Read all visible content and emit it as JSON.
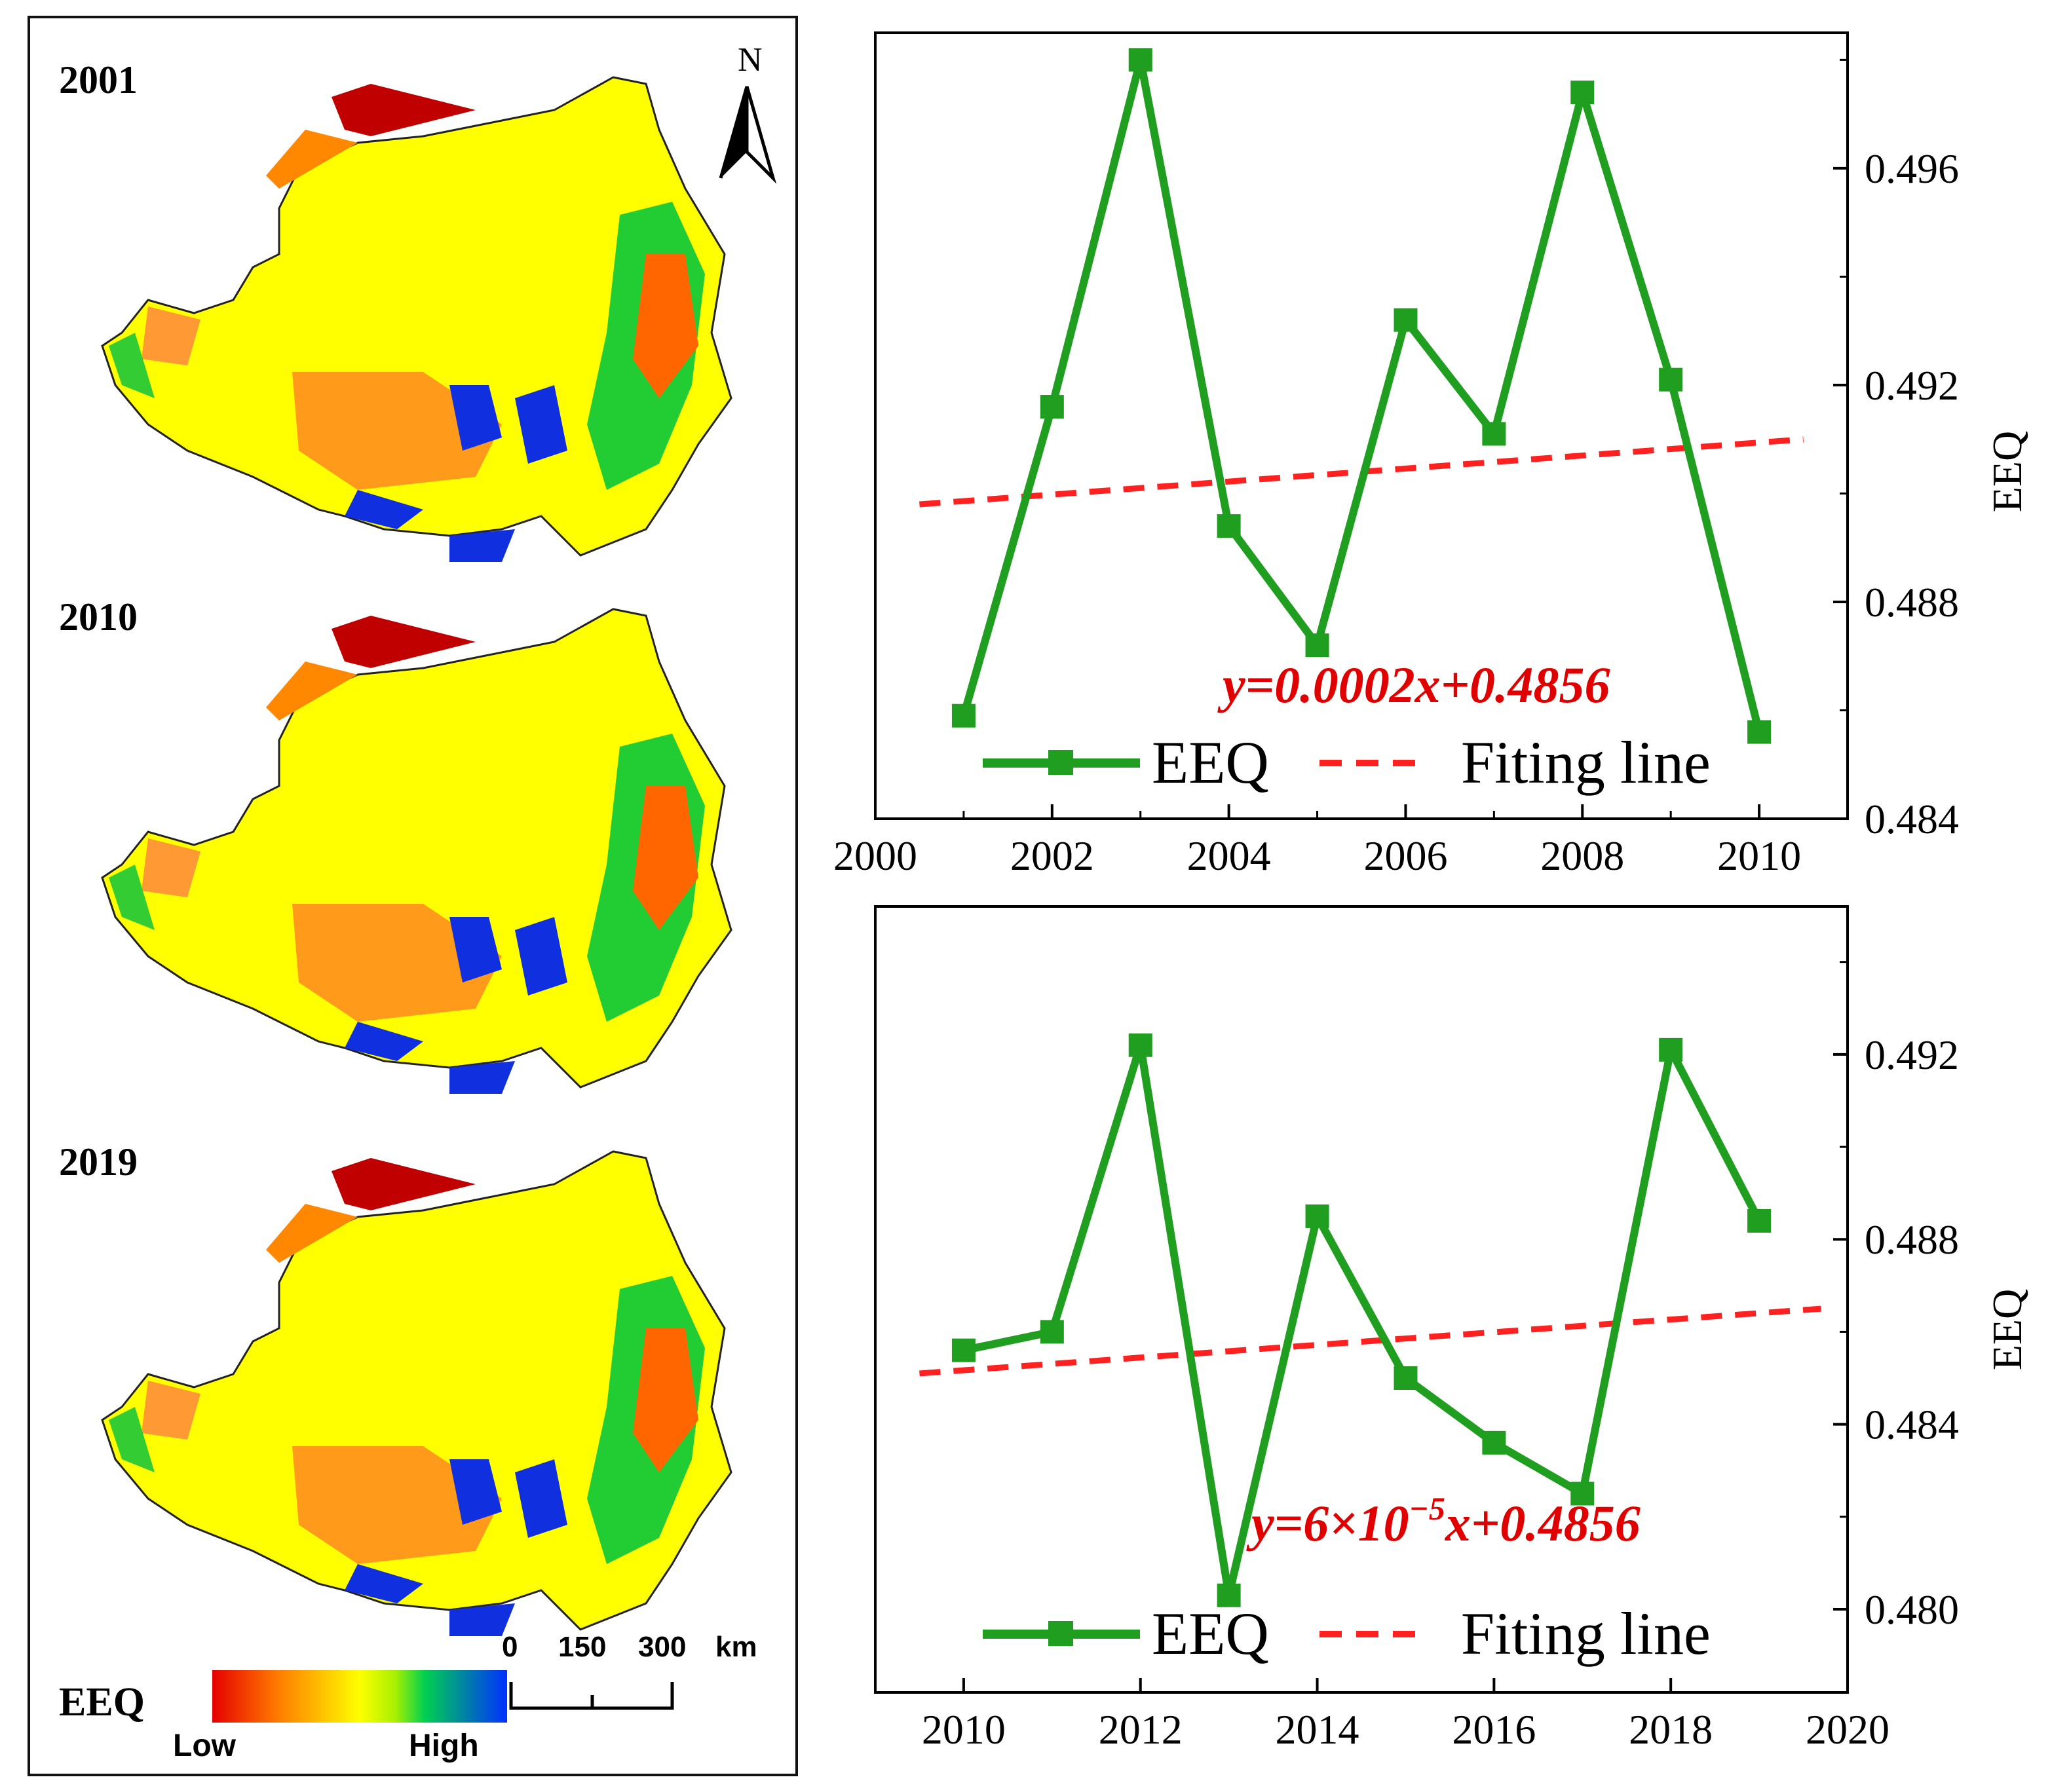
{
  "maps": {
    "years": [
      "2001",
      "2010",
      "2019"
    ],
    "north_label": "N",
    "legend": {
      "title": "EEQ",
      "low": "Low",
      "high": "High"
    },
    "scale_bar": {
      "ticks": [
        "0",
        "150",
        "300"
      ],
      "unit": "km"
    }
  },
  "chart_data": [
    {
      "type": "line",
      "x": [
        2001,
        2002,
        2003,
        2004,
        2005,
        2006,
        2007,
        2008,
        2009,
        2010
      ],
      "series": [
        {
          "name": "EEQ",
          "values": [
            0.4859,
            0.4916,
            0.498,
            0.4894,
            0.4872,
            0.4932,
            0.4911,
            0.4974,
            0.4921,
            0.4856
          ],
          "color": "#1f9e1f"
        },
        {
          "name": "Fiting line",
          "values": [
            0.4898,
            0.491
          ],
          "x": [
            2000.5,
            2010.5
          ],
          "color": "#ff2020",
          "style": "dashed"
        }
      ],
      "xlim": [
        2000,
        2011
      ],
      "ylim": [
        0.484,
        0.4985
      ],
      "xticks": [
        2000,
        2002,
        2004,
        2006,
        2008,
        2010
      ],
      "yticks": [
        "0.484",
        "0.488",
        "0.492",
        "0.496"
      ],
      "ylabel": "EEQ",
      "annotation": "y=0.0002x+0.4856"
    },
    {
      "type": "line",
      "x": [
        2010,
        2011,
        2012,
        2013,
        2014,
        2015,
        2016,
        2017,
        2018,
        2019
      ],
      "series": [
        {
          "name": "EEQ",
          "values": [
            0.4856,
            0.486,
            0.4922,
            0.4803,
            0.4885,
            0.485,
            0.4836,
            0.4825,
            0.4921,
            0.4884
          ],
          "color": "#1f9e1f"
        },
        {
          "name": "Fiting line",
          "values": [
            0.4851,
            0.4865
          ],
          "x": [
            2009.5,
            2019.7
          ],
          "color": "#ff2020",
          "style": "dashed"
        }
      ],
      "xlim": [
        2009,
        2020
      ],
      "ylim": [
        0.4782,
        0.4952
      ],
      "xticks": [
        2010,
        2012,
        2014,
        2016,
        2018,
        2020
      ],
      "yticks": [
        "0.480",
        "0.484",
        "0.488",
        "0.492"
      ],
      "ylabel": "EEQ",
      "annotation_parts": [
        "y=6×10",
        "−5",
        "x+0.4856"
      ]
    }
  ]
}
